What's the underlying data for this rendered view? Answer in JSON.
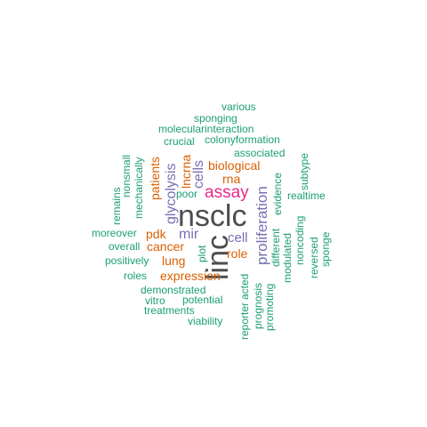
{
  "colors": {
    "dark_gray": "#4d4d4d",
    "magenta": "#e7298a",
    "purple": "#7570b3",
    "orange": "#d95f02",
    "teal": "#1b9e77"
  },
  "words": [
    {
      "text": "nsclc",
      "color": "dark_gray"
    },
    {
      "text": "linc",
      "color": "dark_gray"
    },
    {
      "text": "assay",
      "color": "magenta"
    },
    {
      "text": "proliferation",
      "color": "purple"
    },
    {
      "text": "glycolysis",
      "color": "purple"
    },
    {
      "text": "cells",
      "color": "purple"
    },
    {
      "text": "mir",
      "color": "purple"
    },
    {
      "text": "cell",
      "color": "purple"
    },
    {
      "text": "biological",
      "color": "orange"
    },
    {
      "text": "rna",
      "color": "orange"
    },
    {
      "text": "lncrna",
      "color": "orange"
    },
    {
      "text": "patients",
      "color": "orange"
    },
    {
      "text": "pdk",
      "color": "orange"
    },
    {
      "text": "cancer",
      "color": "orange"
    },
    {
      "text": "lung",
      "color": "orange"
    },
    {
      "text": "role",
      "color": "orange"
    },
    {
      "text": "expression",
      "color": "orange"
    },
    {
      "text": "various",
      "color": "teal"
    },
    {
      "text": "sponging",
      "color": "teal"
    },
    {
      "text": "molecularinteraction",
      "color": "teal"
    },
    {
      "text": "crucial",
      "color": "teal"
    },
    {
      "text": "colonyformation",
      "color": "teal"
    },
    {
      "text": "associated",
      "color": "teal"
    },
    {
      "text": "subtype",
      "color": "teal"
    },
    {
      "text": "realtime",
      "color": "teal"
    },
    {
      "text": "evidence",
      "color": "teal"
    },
    {
      "text": "poor",
      "color": "teal"
    },
    {
      "text": "nonsmall",
      "color": "teal"
    },
    {
      "text": "mechanically",
      "color": "teal"
    },
    {
      "text": "remains",
      "color": "teal"
    },
    {
      "text": "moreover",
      "color": "teal"
    },
    {
      "text": "overall",
      "color": "teal"
    },
    {
      "text": "positively",
      "color": "teal"
    },
    {
      "text": "roles",
      "color": "teal"
    },
    {
      "text": "demonstrated",
      "color": "teal"
    },
    {
      "text": "vitro",
      "color": "teal"
    },
    {
      "text": "potential",
      "color": "teal"
    },
    {
      "text": "treatments",
      "color": "teal"
    },
    {
      "text": "viability",
      "color": "teal"
    },
    {
      "text": "plot",
      "color": "teal"
    },
    {
      "text": "different",
      "color": "teal"
    },
    {
      "text": "modulated",
      "color": "teal"
    },
    {
      "text": "noncoding",
      "color": "teal"
    },
    {
      "text": "reversed",
      "color": "teal"
    },
    {
      "text": "sponge",
      "color": "teal"
    },
    {
      "text": "reporter",
      "color": "teal"
    },
    {
      "text": "acted",
      "color": "teal"
    },
    {
      "text": "prognosis",
      "color": "teal"
    },
    {
      "text": "promoting",
      "color": "teal"
    }
  ]
}
